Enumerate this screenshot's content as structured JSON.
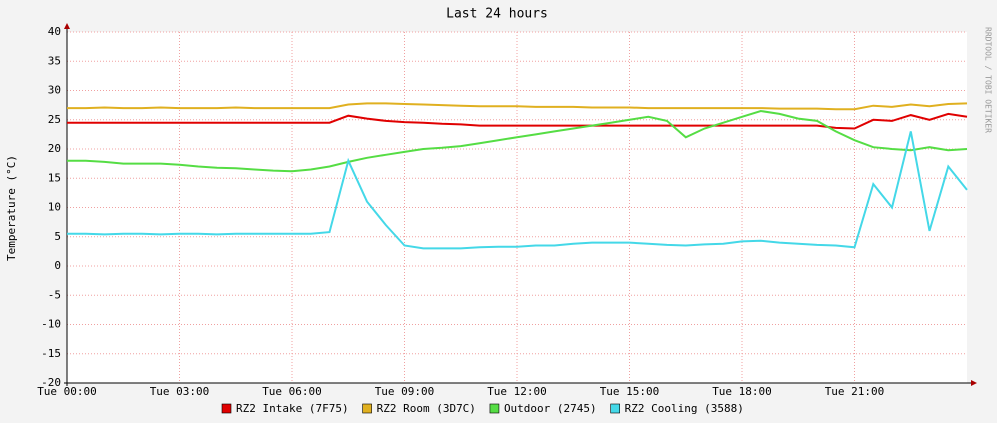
{
  "chart_data": {
    "type": "line",
    "title": "Last 24 hours",
    "y_label": "Temperature (°C)",
    "side_note": "RRDTOOL / TOBI OETIKER",
    "x": [
      0,
      0.5,
      1,
      1.5,
      2,
      2.5,
      3,
      3.5,
      4,
      4.5,
      5,
      5.5,
      6,
      6.5,
      7,
      7.5,
      8,
      8.5,
      9,
      9.5,
      10,
      10.5,
      11,
      11.5,
      12,
      12.5,
      13,
      13.5,
      14,
      14.5,
      15,
      15.5,
      16,
      16.5,
      17,
      17.5,
      18,
      18.5,
      19,
      19.5,
      20,
      20.5,
      21,
      21.5,
      22,
      22.5,
      23,
      23.5,
      24
    ],
    "xlim": [
      0,
      24
    ],
    "xticks": [
      {
        "value": 0,
        "label": "Tue 00:00"
      },
      {
        "value": 3,
        "label": "Tue 03:00"
      },
      {
        "value": 6,
        "label": "Tue 06:00"
      },
      {
        "value": 9,
        "label": "Tue 09:00"
      },
      {
        "value": 12,
        "label": "Tue 12:00"
      },
      {
        "value": 15,
        "label": "Tue 15:00"
      },
      {
        "value": 18,
        "label": "Tue 18:00"
      },
      {
        "value": 21,
        "label": "Tue 21:00"
      }
    ],
    "ylim": [
      -20,
      40
    ],
    "yticks": [
      -20,
      -15,
      -10,
      -5,
      0,
      5,
      10,
      15,
      20,
      25,
      30,
      35,
      40
    ],
    "grid": true,
    "series": [
      {
        "name": "RZ2 Intake (7F75)",
        "color": "#e00000",
        "values": [
          24.5,
          24.5,
          24.5,
          24.5,
          24.5,
          24.5,
          24.5,
          24.5,
          24.5,
          24.5,
          24.5,
          24.5,
          24.5,
          24.5,
          24.5,
          25.7,
          25.2,
          24.8,
          24.6,
          24.5,
          24.3,
          24.2,
          24,
          24,
          24,
          24,
          24,
          24,
          24,
          24,
          24,
          24,
          24,
          24,
          24,
          24,
          24,
          24,
          24,
          24,
          24,
          23.6,
          23.5,
          25,
          24.8,
          25.8,
          25,
          26,
          25.5
        ]
      },
      {
        "name": "RZ2 Room (3D7C)",
        "color": "#e0b020",
        "values": [
          27,
          27,
          27.1,
          27,
          27,
          27.1,
          27,
          27,
          27,
          27.1,
          27,
          27,
          27,
          27,
          27,
          27.6,
          27.8,
          27.8,
          27.7,
          27.6,
          27.5,
          27.4,
          27.3,
          27.3,
          27.3,
          27.2,
          27.2,
          27.2,
          27.1,
          27.1,
          27.1,
          27,
          27,
          27,
          27,
          27,
          27,
          27,
          26.9,
          26.9,
          26.9,
          26.8,
          26.8,
          27.4,
          27.2,
          27.6,
          27.3,
          27.7,
          27.8
        ]
      },
      {
        "name": "Outdoor (2745)",
        "color": "#55dd44",
        "values": [
          18,
          18,
          17.8,
          17.5,
          17.5,
          17.5,
          17.3,
          17,
          16.8,
          16.7,
          16.5,
          16.3,
          16.2,
          16.5,
          17,
          17.8,
          18.5,
          19,
          19.5,
          20,
          20.2,
          20.5,
          21,
          21.5,
          22,
          22.5,
          23,
          23.5,
          24,
          24.5,
          25,
          25.5,
          24.8,
          22,
          23.5,
          24.5,
          25.5,
          26.5,
          26,
          25.2,
          24.8,
          23,
          21.5,
          20.3,
          20,
          19.8,
          20.3,
          19.8,
          20
        ]
      },
      {
        "name": "RZ2 Cooling (3588)",
        "color": "#44d8e8",
        "values": [
          5.5,
          5.5,
          5.4,
          5.5,
          5.5,
          5.4,
          5.5,
          5.5,
          5.4,
          5.5,
          5.5,
          5.5,
          5.5,
          5.5,
          5.8,
          18,
          11,
          7,
          3.5,
          3,
          3,
          3,
          3.2,
          3.3,
          3.3,
          3.5,
          3.5,
          3.8,
          4,
          4,
          4,
          3.8,
          3.6,
          3.5,
          3.7,
          3.8,
          4.2,
          4.3,
          4,
          3.8,
          3.6,
          3.5,
          3.2,
          14,
          10,
          23,
          6,
          17,
          13
        ]
      }
    ]
  }
}
